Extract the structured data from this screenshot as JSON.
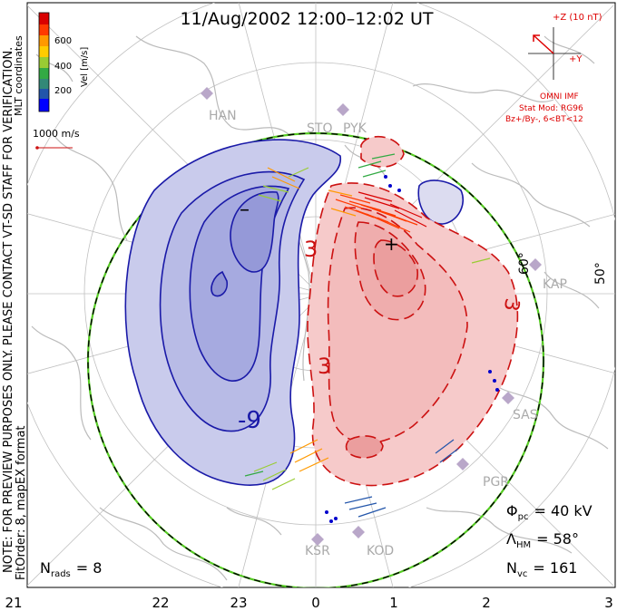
{
  "title": "11/Aug/2002 12:00–12:02 UT",
  "colorbar": {
    "label": "Vel [m/s]",
    "ticks": [
      "600",
      "400",
      "200"
    ],
    "colors": [
      "#d90000",
      "#ff3a00",
      "#ff9900",
      "#ffcc00",
      "#99cc33",
      "#33aa44",
      "#338877",
      "#2255aa",
      "#0000ff"
    ]
  },
  "coord_label": "MLT coordinates",
  "scale_label": "1000 m/s",
  "watermark_line1": "NOTE: FOR PREVIEW PURPOSES ONLY. PLEASE CONTACT VT-SD STAFF FOR VERIFICATION.",
  "watermark_line2": "FitOrder: 8, mapEX format",
  "imf": {
    "z_label": "+Z (10 nT)",
    "y_label": "+Y",
    "source": "OMNI IMF",
    "stat_mod": "Stat Mod: RG96",
    "condition": "Bz+/By-, 6<BT<12",
    "color": "#dd0000"
  },
  "stations": [
    "HAN",
    "STO",
    "PYK",
    "KAP",
    "SAS",
    "PGR",
    "KSR",
    "KOD"
  ],
  "lat_labels": [
    "60°",
    "50°"
  ],
  "contour_labels": {
    "neg": [
      "-9",
      "–"
    ],
    "pos": [
      "3",
      "3",
      "3",
      "+"
    ]
  },
  "stats": {
    "phi_label": "Φ",
    "phi_sub": "pc",
    "phi_value": "= 40 kV",
    "lambda_label": "Λ",
    "lambda_sub": "HM",
    "lambda_value": "= 58°",
    "nvc_label": "N",
    "nvc_sub": "vc",
    "nvc_value": "= 161",
    "nrads_label": "N",
    "nrads_sub": "rads",
    "nrads_value": "= 8"
  },
  "mlt_labels": [
    "21",
    "22",
    "23",
    "0",
    "1",
    "2",
    "3"
  ],
  "colors": {
    "neg_contour": "#1a1aa8",
    "pos_contour": "#cc1111",
    "neg_fill": "#c9cbec",
    "pos_fill": "#f6caca",
    "coastline": "#bbbbbb",
    "grid": "#c0c0c0"
  }
}
